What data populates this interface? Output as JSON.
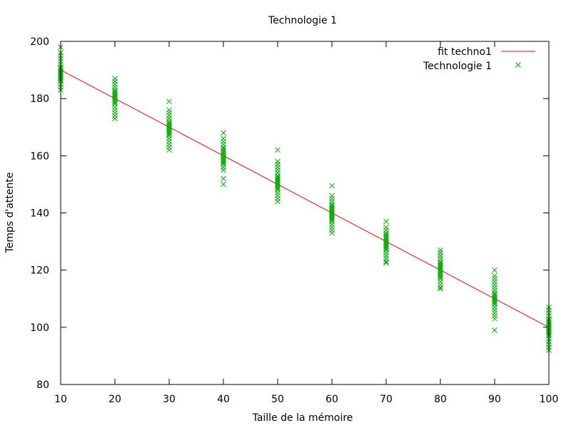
{
  "colors": {
    "fit_line": "#ff0000",
    "points": "#00aa00",
    "axes": "#000000",
    "background": "#ffffff"
  },
  "chart_data": {
    "type": "scatter",
    "title": "Technologie 1",
    "xlabel": "Taille de la mémoire",
    "ylabel": "Temps d'attente",
    "xlim": [
      10,
      100
    ],
    "ylim": [
      80,
      200
    ],
    "xticks": [
      10,
      20,
      30,
      40,
      50,
      60,
      70,
      80,
      90,
      100
    ],
    "yticks": [
      80,
      100,
      120,
      140,
      160,
      180,
      200
    ],
    "grid": false,
    "legend_position": "top-right",
    "series": [
      {
        "name": "fit techno1",
        "kind": "line",
        "x": [
          10,
          100
        ],
        "y": [
          190,
          100
        ]
      },
      {
        "name": "Technologie 1",
        "kind": "scatter",
        "marker": "x",
        "x": [
          10,
          10,
          10,
          10,
          10,
          10,
          10,
          10,
          10,
          10,
          10,
          10,
          10,
          10,
          10,
          10,
          10,
          10,
          10,
          10,
          10,
          10,
          20,
          20,
          20,
          20,
          20,
          20,
          20,
          20,
          20,
          20,
          20,
          20,
          20,
          20,
          20,
          20,
          20,
          20,
          20,
          20,
          30,
          30,
          30,
          30,
          30,
          30,
          30,
          30,
          30,
          30,
          30,
          30,
          30,
          30,
          30,
          30,
          30,
          30,
          30,
          30,
          30,
          40,
          40,
          40,
          40,
          40,
          40,
          40,
          40,
          40,
          40,
          40,
          40,
          40,
          40,
          40,
          40,
          40,
          40,
          40,
          40,
          40,
          50,
          50,
          50,
          50,
          50,
          50,
          50,
          50,
          50,
          50,
          50,
          50,
          50,
          50,
          50,
          50,
          50,
          50,
          50,
          50,
          50,
          60,
          60,
          60,
          60,
          60,
          60,
          60,
          60,
          60,
          60,
          60,
          60,
          60,
          60,
          60,
          60,
          60,
          60,
          60,
          60,
          60,
          70,
          70,
          70,
          70,
          70,
          70,
          70,
          70,
          70,
          70,
          70,
          70,
          70,
          70,
          70,
          70,
          70,
          70,
          70,
          70,
          70,
          80,
          80,
          80,
          80,
          80,
          80,
          80,
          80,
          80,
          80,
          80,
          80,
          80,
          80,
          80,
          80,
          80,
          80,
          80,
          80,
          80,
          90,
          90,
          90,
          90,
          90,
          90,
          90,
          90,
          90,
          90,
          90,
          90,
          90,
          90,
          90,
          90,
          90,
          90,
          90,
          90,
          90,
          90,
          100,
          100,
          100,
          100,
          100,
          100,
          100,
          100,
          100,
          100,
          100,
          100,
          100,
          100,
          100,
          100,
          100,
          100,
          100,
          100,
          100,
          100
        ],
        "y": [
          198,
          196,
          195,
          194,
          193,
          192,
          191,
          190.5,
          190,
          189.5,
          189,
          188.5,
          188,
          187.5,
          187,
          186.5,
          186,
          185,
          184,
          183,
          189,
          191,
          187,
          186,
          185,
          184,
          183,
          182,
          181,
          180,
          179,
          178,
          177,
          176,
          175,
          174,
          173,
          180.5,
          179.5,
          178.5,
          181.5,
          182.5,
          179,
          176,
          175,
          174,
          173,
          172,
          171,
          170,
          169,
          168,
          167,
          166,
          165,
          164,
          163,
          162,
          170.5,
          169.5,
          171.5,
          168.5,
          167.5,
          168,
          166,
          165,
          164,
          163,
          162,
          161,
          160,
          159,
          158,
          157,
          156,
          155,
          152,
          150,
          160.5,
          159.5,
          161.5,
          158.5,
          157.5,
          162.5,
          162,
          158,
          157,
          156,
          155,
          154,
          153,
          152,
          151,
          150,
          149,
          148,
          147,
          146,
          145,
          144,
          150.5,
          151.5,
          149.5,
          152.5,
          148.5,
          149.5,
          146,
          145,
          144,
          143,
          142,
          141,
          140,
          139,
          138,
          137,
          136,
          135,
          134,
          133,
          140.5,
          139.5,
          141.5,
          138.5,
          137.5,
          142.5,
          137,
          135,
          134,
          133,
          132,
          131,
          130,
          129,
          128,
          127,
          126,
          125,
          124,
          123,
          122.5,
          130.5,
          129.5,
          131.5,
          128.5,
          127.5,
          132.5,
          127,
          126,
          125,
          124,
          123,
          122,
          121,
          120,
          119,
          118,
          117,
          116,
          115,
          114,
          113.5,
          120.5,
          119.5,
          121.5,
          118.5,
          117.5,
          122.5,
          120,
          118,
          117,
          116,
          115,
          114,
          113,
          112,
          111,
          110,
          109,
          108,
          107,
          106,
          105,
          104,
          103,
          99,
          110.5,
          109.5,
          111.5,
          108.5,
          107,
          106,
          105,
          104,
          103,
          102,
          101,
          100,
          99,
          98,
          97,
          96,
          95,
          94,
          93,
          92,
          100.5,
          99.5,
          101.5,
          98.5,
          97.5,
          102.5
        ]
      }
    ]
  }
}
